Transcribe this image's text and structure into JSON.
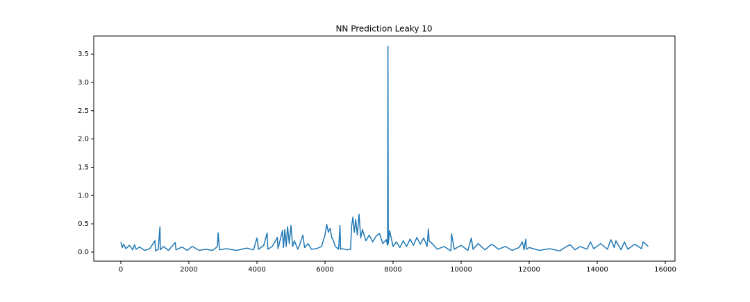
{
  "chart_data": {
    "type": "line",
    "title": "NN Prediction Leaky 10",
    "x": [
      0,
      40,
      80,
      150,
      250,
      350,
      400,
      450,
      550,
      700,
      850,
      1000,
      1020,
      1100,
      1150,
      1160,
      1250,
      1400,
      1600,
      1620,
      1800,
      1950,
      2100,
      2300,
      2500,
      2700,
      2840,
      2860,
      2900,
      3100,
      3400,
      3700,
      3900,
      4000,
      4050,
      4200,
      4300,
      4320,
      4450,
      4600,
      4620,
      4750,
      4780,
      4820,
      4860,
      4900,
      4950,
      5000,
      5050,
      5100,
      5200,
      5250,
      5350,
      5400,
      5500,
      5600,
      5750,
      5900,
      6000,
      6050,
      6100,
      6150,
      6200,
      6250,
      6300,
      6400,
      6440,
      6460,
      6520,
      6650,
      6750,
      6780,
      6820,
      6860,
      6900,
      6950,
      7000,
      7050,
      7100,
      7200,
      7300,
      7400,
      7500,
      7600,
      7700,
      7800,
      7840,
      7850,
      7860,
      7900,
      8000,
      8100,
      8200,
      8300,
      8400,
      8500,
      8600,
      8700,
      8800,
      8900,
      9000,
      9040,
      9060,
      9150,
      9300,
      9500,
      9700,
      9720,
      9800,
      10000,
      10200,
      10300,
      10350,
      10500,
      10700,
      10900,
      11100,
      11300,
      11500,
      11700,
      11800,
      11850,
      11900,
      11920,
      12000,
      12300,
      12600,
      12900,
      13100,
      13200,
      13350,
      13500,
      13700,
      13800,
      13900,
      14100,
      14300,
      14400,
      14500,
      14550,
      14700,
      14800,
      14900,
      15100,
      15300,
      15350,
      15500
    ],
    "series": [
      {
        "color": "#1f77b4",
        "values": [
          0.18,
          0.08,
          0.14,
          0.06,
          0.12,
          0.04,
          0.13,
          0.05,
          0.09,
          0.03,
          0.06,
          0.2,
          0.02,
          0.05,
          0.45,
          0.04,
          0.1,
          0.03,
          0.17,
          0.04,
          0.09,
          0.03,
          0.1,
          0.03,
          0.05,
          0.03,
          0.1,
          0.34,
          0.04,
          0.06,
          0.03,
          0.07,
          0.04,
          0.25,
          0.05,
          0.12,
          0.34,
          0.05,
          0.1,
          0.26,
          0.06,
          0.38,
          0.08,
          0.4,
          0.1,
          0.45,
          0.15,
          0.47,
          0.1,
          0.2,
          0.05,
          0.12,
          0.3,
          0.08,
          0.15,
          0.05,
          0.06,
          0.1,
          0.3,
          0.49,
          0.35,
          0.42,
          0.25,
          0.2,
          0.1,
          0.05,
          0.47,
          0.05,
          0.06,
          0.04,
          0.05,
          0.45,
          0.62,
          0.35,
          0.58,
          0.3,
          0.67,
          0.25,
          0.4,
          0.2,
          0.3,
          0.18,
          0.28,
          0.33,
          0.15,
          0.22,
          0.12,
          3.64,
          0.15,
          0.38,
          0.1,
          0.18,
          0.08,
          0.2,
          0.1,
          0.23,
          0.12,
          0.26,
          0.14,
          0.25,
          0.1,
          0.41,
          0.2,
          0.15,
          0.05,
          0.1,
          0.02,
          0.32,
          0.05,
          0.12,
          0.03,
          0.25,
          0.05,
          0.15,
          0.04,
          0.14,
          0.05,
          0.1,
          0.03,
          0.08,
          0.18,
          0.04,
          0.23,
          0.05,
          0.08,
          0.03,
          0.06,
          0.02,
          0.1,
          0.13,
          0.04,
          0.1,
          0.05,
          0.18,
          0.06,
          0.15,
          0.05,
          0.22,
          0.08,
          0.2,
          0.04,
          0.18,
          0.05,
          0.14,
          0.06,
          0.18,
          0.1
        ]
      }
    ],
    "xlim": [
      -796,
      16286
    ],
    "xticks": [
      0,
      2000,
      4000,
      6000,
      8000,
      10000,
      12000,
      14000,
      16000
    ],
    "ylim": [
      -0.16,
      3.82
    ],
    "yticks": [
      {
        "value": 0,
        "label": "0.0"
      },
      0.5,
      {
        "value": 1,
        "label": "1.0"
      },
      1.5,
      {
        "value": 2,
        "label": "2.0"
      },
      2.5,
      {
        "value": 3,
        "label": "3.0"
      },
      3.5
    ]
  }
}
